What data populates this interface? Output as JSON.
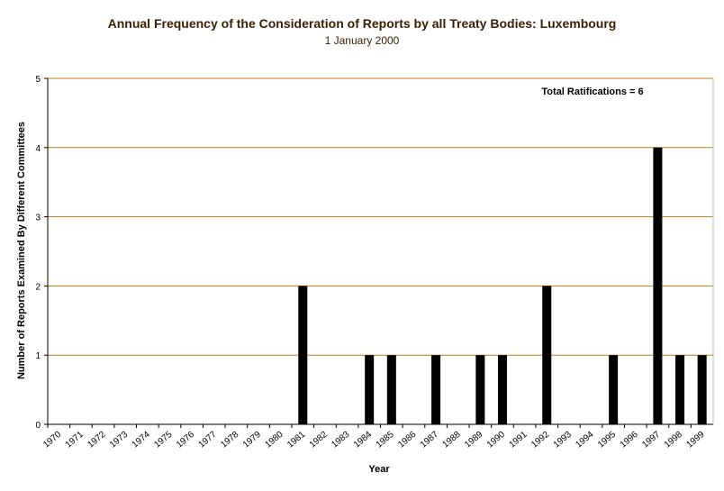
{
  "chart_data": {
    "type": "bar",
    "title": "Annual Frequency of the Consideration of Reports by all Treaty Bodies: Luxembourg",
    "subtitle": "1 January 2000",
    "xlabel": "Year",
    "ylabel": "Number of Reports Examined By Different Committees",
    "ylim": [
      0,
      5
    ],
    "yticks": [
      "0",
      "1",
      "2",
      "3",
      "4",
      "5"
    ],
    "grid": true,
    "annotation": "Total Ratifications = 6",
    "categories": [
      "1970",
      "1971",
      "1972",
      "1973",
      "1974",
      "1975",
      "1976",
      "1977",
      "1978",
      "1979",
      "1980",
      "1981",
      "1982",
      "1983",
      "1984",
      "1985",
      "1986",
      "1987",
      "1988",
      "1989",
      "1990",
      "1991",
      "1992",
      "1993",
      "1994",
      "1995",
      "1996",
      "1997",
      "1998",
      "1999"
    ],
    "values": [
      0,
      0,
      0,
      0,
      0,
      0,
      0,
      0,
      0,
      0,
      0,
      2,
      0,
      0,
      1,
      1,
      0,
      1,
      0,
      1,
      1,
      0,
      2,
      0,
      0,
      1,
      0,
      4,
      1,
      1
    ],
    "colors": {
      "bar": "#000000",
      "grid": "#c07a1a",
      "axis": "#000000"
    }
  }
}
